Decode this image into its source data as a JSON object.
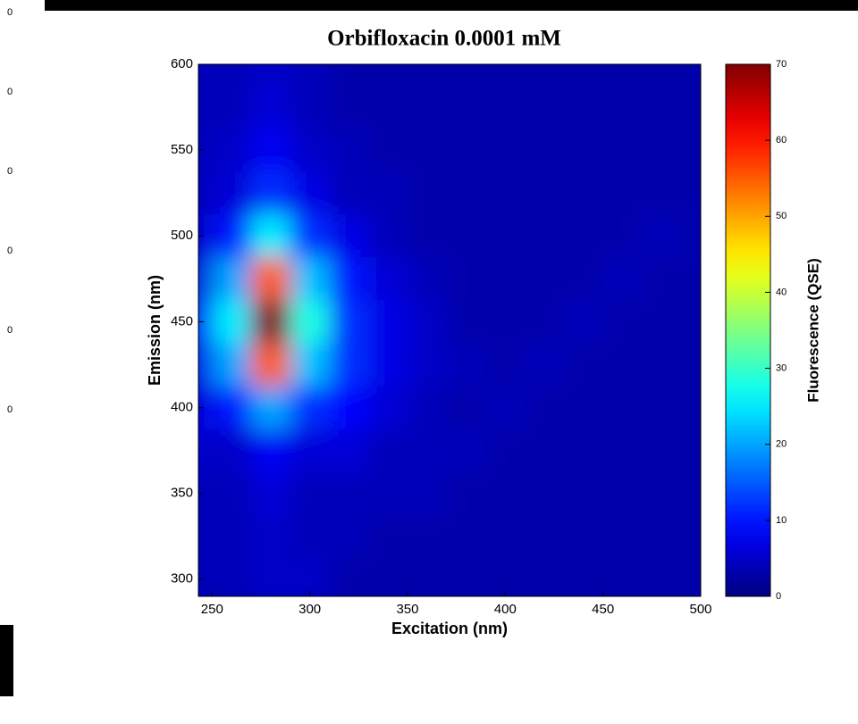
{
  "chart_data": {
    "type": "heatmap",
    "title": "Orbifloxacin 0.0001 mM",
    "x_label": "Excitation (nm)",
    "y_label": "Emission (nm)",
    "x": [
      240,
      260,
      280,
      300,
      320,
      340,
      360,
      380,
      400,
      420,
      440,
      460,
      480,
      500
    ],
    "y": [
      600,
      575,
      550,
      525,
      500,
      475,
      450,
      425,
      400,
      375,
      350,
      325,
      300
    ],
    "z": [
      [
        4,
        4,
        5,
        4,
        3,
        3,
        3,
        3,
        3,
        3,
        3,
        3,
        3,
        3
      ],
      [
        4,
        4,
        6,
        4,
        3,
        3,
        3,
        3,
        3,
        3,
        3,
        3,
        3,
        3
      ],
      [
        4,
        5,
        8,
        5,
        4,
        3,
        3,
        3,
        3,
        3,
        3,
        3,
        3,
        3
      ],
      [
        4,
        6,
        12,
        7,
        4,
        4,
        3,
        3,
        3,
        3,
        3,
        3,
        3,
        3
      ],
      [
        5,
        10,
        25,
        12,
        7,
        4,
        3,
        3,
        3,
        3,
        3,
        3,
        4,
        3
      ],
      [
        6,
        20,
        55,
        22,
        10,
        6,
        4,
        3,
        3,
        3,
        3,
        4,
        3,
        3
      ],
      [
        8,
        25,
        70,
        28,
        12,
        7,
        5,
        3,
        3,
        3,
        4,
        3,
        3,
        3
      ],
      [
        7,
        20,
        55,
        22,
        12,
        7,
        5,
        4,
        3,
        4,
        3,
        3,
        3,
        3
      ],
      [
        6,
        10,
        20,
        12,
        9,
        6,
        4,
        3,
        4,
        3,
        3,
        3,
        3,
        3
      ],
      [
        5,
        5,
        8,
        6,
        6,
        4,
        4,
        4,
        3,
        3,
        3,
        3,
        3,
        3
      ],
      [
        4,
        4,
        6,
        4,
        4,
        4,
        4,
        3,
        3,
        3,
        3,
        3,
        3,
        3
      ],
      [
        4,
        4,
        5,
        4,
        4,
        3,
        3,
        3,
        3,
        3,
        3,
        3,
        3,
        3
      ],
      [
        4,
        4,
        5,
        5,
        3,
        3,
        3,
        3,
        3,
        3,
        3,
        3,
        3,
        3
      ]
    ],
    "colormap": "jet",
    "xlim": [
      243,
      500
    ],
    "ylim": [
      290,
      600
    ],
    "xticks": [
      250,
      300,
      350,
      400,
      450,
      500
    ],
    "yticks": [
      300,
      350,
      400,
      450,
      500,
      550,
      600
    ],
    "colorbar": {
      "label": "Fluorescence (QSE)",
      "lim": [
        0,
        70
      ],
      "ticks": [
        0,
        10,
        20,
        30,
        40,
        50,
        60,
        70
      ]
    },
    "left_fragment_labels": [
      "0",
      "0",
      "0",
      "0",
      "0",
      "0"
    ]
  }
}
